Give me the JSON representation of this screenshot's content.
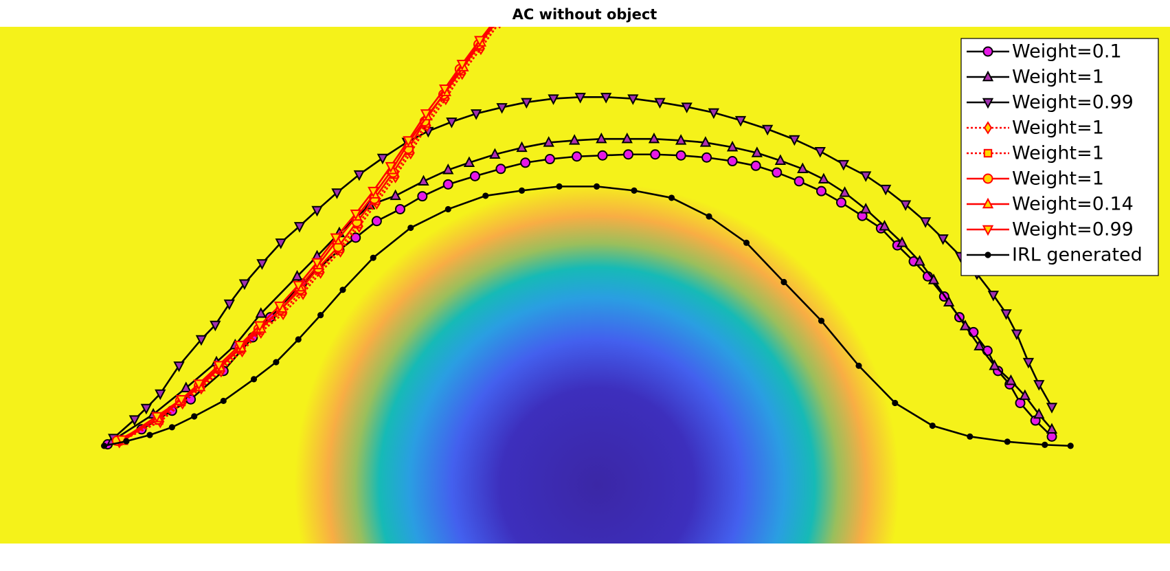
{
  "chart_data": {
    "type": "line",
    "title": "AC without object",
    "xlim": [
      0,
      100
    ],
    "ylim": [
      0,
      100
    ],
    "legend": "upper right",
    "series": [
      {
        "name": "Weight=0.1",
        "color": "#000000",
        "marker": "circle",
        "marker_color": "#e619e6",
        "linestyle": "solid",
        "x": [
          9.2,
          12.1,
          14.7,
          16.3,
          19.1,
          21.6,
          23.1,
          25.8,
          29.0,
          30.4,
          32.2,
          34.2,
          36.1,
          38.3,
          40.6,
          42.8,
          44.9,
          47.0,
          49.3,
          51.5,
          53.7,
          56.0,
          58.2,
          60.4,
          62.6,
          64.6,
          66.4,
          68.3,
          70.2,
          71.9,
          73.7,
          75.3,
          76.7,
          78.1,
          79.3,
          80.7,
          82.0,
          83.2,
          84.4,
          85.3,
          86.3,
          87.2,
          88.5,
          89.9
        ],
        "values": [
          19.2,
          22.1,
          25.7,
          27.9,
          33.4,
          39.9,
          43.8,
          50.3,
          56.8,
          59.2,
          62.4,
          64.7,
          67.2,
          69.5,
          71.1,
          72.5,
          73.7,
          74.4,
          74.9,
          75.1,
          75.3,
          75.3,
          75.1,
          74.7,
          74.0,
          73.1,
          71.8,
          70.1,
          68.2,
          66.0,
          63.4,
          61.0,
          57.7,
          54.6,
          51.7,
          47.8,
          43.8,
          40.9,
          37.3,
          33.4,
          30.8,
          27.2,
          23.8,
          20.7
        ]
      },
      {
        "name": "Weight=1",
        "color": "#000000",
        "marker": "triangle-up",
        "marker_color": "#b030b0",
        "linestyle": "solid",
        "x": [
          9.6,
          13.1,
          15.9,
          18.5,
          20.1,
          22.3,
          25.4,
          27.1,
          29.0,
          31.6,
          33.8,
          36.2,
          38.3,
          40.1,
          42.3,
          44.6,
          46.9,
          49.1,
          51.4,
          53.6,
          55.9,
          58.2,
          60.3,
          62.6,
          64.7,
          66.7,
          68.6,
          70.4,
          72.2,
          74.0,
          75.6,
          77.1,
          78.6,
          79.8,
          81.1,
          82.5,
          83.7,
          85.0,
          86.4,
          87.6,
          88.8,
          89.9
        ],
        "values": [
          19.9,
          25.0,
          30.1,
          35.1,
          38.4,
          44.5,
          51.7,
          55.6,
          60.1,
          65.5,
          67.3,
          70.1,
          72.3,
          73.7,
          75.3,
          76.6,
          77.6,
          78.0,
          78.3,
          78.3,
          78.3,
          78.0,
          77.6,
          76.7,
          75.6,
          74.1,
          72.5,
          70.5,
          67.9,
          64.7,
          61.4,
          58.2,
          54.6,
          51.0,
          46.7,
          42.1,
          38.2,
          34.4,
          31.5,
          28.6,
          25.0,
          22.1
        ]
      },
      {
        "name": "Weight=0.99",
        "color": "#000000",
        "marker": "triangle-down",
        "marker_color": "#a030b0",
        "linestyle": "solid",
        "x": [
          9.7,
          11.5,
          12.5,
          13.7,
          15.3,
          17.2,
          18.4,
          19.6,
          20.9,
          22.4,
          24.0,
          25.6,
          27.1,
          28.8,
          30.7,
          32.7,
          34.8,
          36.6,
          38.6,
          40.7,
          42.9,
          45.0,
          47.3,
          49.6,
          51.8,
          54.1,
          56.4,
          58.7,
          61.0,
          63.3,
          65.6,
          67.9,
          70.1,
          72.1,
          74.0,
          75.7,
          77.4,
          79.1,
          80.6,
          82.1,
          83.5,
          84.9,
          86.0,
          86.9,
          87.9,
          88.8,
          89.9
        ],
        "values": [
          20.4,
          24.0,
          26.2,
          29.0,
          34.4,
          39.5,
          42.3,
          46.4,
          50.3,
          54.2,
          58.2,
          61.4,
          64.5,
          67.9,
          71.4,
          74.6,
          77.7,
          79.8,
          81.6,
          83.2,
          84.4,
          85.4,
          86.1,
          86.4,
          86.4,
          86.1,
          85.4,
          84.5,
          83.4,
          81.9,
          80.2,
          78.2,
          75.9,
          73.4,
          71.2,
          68.6,
          65.6,
          62.3,
          59.0,
          55.6,
          52.2,
          48.1,
          44.5,
          40.6,
          35.1,
          30.8,
          26.4
        ]
      },
      {
        "name": "Weight=1",
        "color": "#ff0000",
        "marker": "diamond",
        "marker_color": "#ffd700",
        "linestyle": "dotted",
        "x": [
          10.2,
          13.7,
          15.6,
          17.2,
          18.9,
          20.7,
          22.3,
          24.2,
          25.9,
          27.4,
          29.1,
          30.7,
          32.2,
          33.8,
          35.1,
          36.5,
          38.1,
          39.5,
          41.1,
          42.7
        ],
        "values": [
          19.7,
          23.6,
          27.2,
          30.1,
          33.4,
          37.3,
          40.9,
          44.5,
          48.4,
          52.5,
          56.6,
          61.4,
          65.9,
          71.0,
          75.6,
          80.9,
          86.1,
          91.0,
          95.8,
          100.9
        ]
      },
      {
        "name": "Weight=1",
        "color": "#ff0000",
        "marker": "square",
        "marker_color": "#ffd700",
        "linestyle": "dotted",
        "x": [
          10.1,
          13.6,
          15.5,
          17.1,
          18.8,
          20.6,
          22.2,
          24.1,
          25.8,
          27.3,
          29.0,
          30.6,
          32.1,
          33.7,
          35.0,
          36.4,
          38.0,
          39.4,
          41.0,
          42.6
        ],
        "values": [
          19.8,
          23.8,
          27.4,
          30.3,
          33.7,
          37.6,
          41.2,
          44.9,
          48.8,
          52.9,
          57.0,
          61.8,
          66.3,
          71.4,
          76.0,
          81.3,
          86.5,
          91.4,
          96.2,
          101.3
        ]
      },
      {
        "name": "Weight=1",
        "color": "#ff0000",
        "marker": "circle",
        "marker_color": "#ffd700",
        "linestyle": "solid",
        "x": [
          10.0,
          13.5,
          15.4,
          17.0,
          18.7,
          20.5,
          22.1,
          24.0,
          25.7,
          27.2,
          28.9,
          30.5,
          32.0,
          33.6,
          34.9,
          36.3,
          37.9,
          39.3,
          40.9,
          42.5
        ],
        "values": [
          19.9,
          24.0,
          27.6,
          30.5,
          34.0,
          37.9,
          41.5,
          45.3,
          49.2,
          53.3,
          57.4,
          62.2,
          66.7,
          71.8,
          76.4,
          81.7,
          86.9,
          91.8,
          96.6,
          101.7
        ]
      },
      {
        "name": "Weight=0.14",
        "color": "#ff0000",
        "marker": "triangle-up",
        "marker_color": "#ffd700",
        "linestyle": "solid",
        "x": [
          10.5,
          13.5,
          15.4,
          17.1,
          18.8,
          20.6,
          22.3,
          24.1,
          25.6,
          27.2,
          28.8,
          30.5,
          32.0,
          33.5,
          34.9,
          36.5,
          38.1,
          39.6,
          41.1,
          42.6
        ],
        "values": [
          19.9,
          24.3,
          27.6,
          30.3,
          34.1,
          37.9,
          41.6,
          45.5,
          49.6,
          53.9,
          58.7,
          63.3,
          67.6,
          72.3,
          77.5,
          82.7,
          87.4,
          92.2,
          97.0,
          101.4
        ]
      },
      {
        "name": "Weight=0.99",
        "color": "#ff0000",
        "marker": "triangle-down",
        "marker_color": "#ffd700",
        "linestyle": "solid",
        "x": [
          10.4,
          13.4,
          15.5,
          17.0,
          18.7,
          20.5,
          22.2,
          23.9,
          25.5,
          27.1,
          28.7,
          30.4,
          31.9,
          33.4,
          34.9,
          36.4,
          38.0,
          39.5,
          41.0,
          42.5
        ],
        "values": [
          20.1,
          24.6,
          27.9,
          30.9,
          34.5,
          38.4,
          42.2,
          46.0,
          50.0,
          54.4,
          59.2,
          63.8,
          68.2,
          73.0,
          78.0,
          83.2,
          88.0,
          92.8,
          97.4,
          101.8
        ]
      },
      {
        "name": "IRL generated",
        "color": "#000000",
        "marker": "dot",
        "marker_color": "#000000",
        "linestyle": "solid",
        "x": [
          8.9,
          10.8,
          12.8,
          14.7,
          16.6,
          19.1,
          21.7,
          23.6,
          25.5,
          27.4,
          29.3,
          31.9,
          35.1,
          38.3,
          41.5,
          44.6,
          47.8,
          51.0,
          54.2,
          57.4,
          60.6,
          63.8,
          67.0,
          70.2,
          73.4,
          76.5,
          79.7,
          82.9,
          86.1,
          89.3,
          91.5
        ],
        "values": [
          18.9,
          19.8,
          21.0,
          22.5,
          24.6,
          27.6,
          31.8,
          35.1,
          39.5,
          44.2,
          49.1,
          55.3,
          61.1,
          64.7,
          67.3,
          68.3,
          69.1,
          69.1,
          68.3,
          66.9,
          63.3,
          58.2,
          50.6,
          43.1,
          34.4,
          27.2,
          22.8,
          20.7,
          19.7,
          19.1,
          18.9
        ]
      }
    ]
  }
}
